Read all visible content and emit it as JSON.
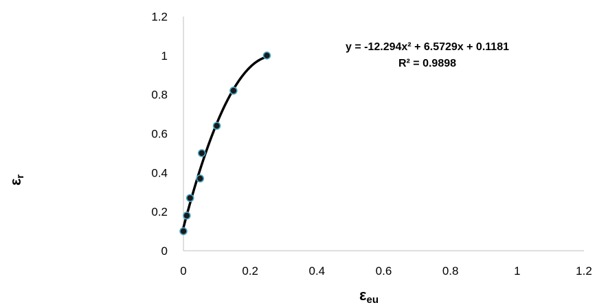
{
  "chart_data": {
    "type": "scatter",
    "xlabel": {
      "main": "ε",
      "sub": "eu"
    },
    "ylabel": {
      "main": "ε",
      "sub": "r"
    },
    "xlim": [
      0,
      1.2
    ],
    "ylim": [
      0,
      1.2
    ],
    "x_ticks": [
      "0",
      "0.2",
      "0.4",
      "0.6",
      "0.8",
      "1",
      "1.2"
    ],
    "y_ticks": [
      "0",
      "0.2",
      "0.4",
      "0.6",
      "0.8",
      "1",
      "1.2"
    ],
    "grid": false,
    "points": [
      {
        "x": 0.0,
        "y": 0.1
      },
      {
        "x": 0.01,
        "y": 0.18
      },
      {
        "x": 0.02,
        "y": 0.27
      },
      {
        "x": 0.05,
        "y": 0.37
      },
      {
        "x": 0.055,
        "y": 0.5
      },
      {
        "x": 0.1,
        "y": 0.64
      },
      {
        "x": 0.15,
        "y": 0.82
      },
      {
        "x": 0.25,
        "y": 1.0
      }
    ],
    "trendline": {
      "type": "polynomial",
      "coefficients": [
        -12.294,
        6.5729,
        0.1181
      ],
      "x_range": [
        0,
        0.25
      ],
      "equation": "y = -12.294x² + 6.5729x + 0.1181",
      "r_squared": "R² = 0.9898"
    },
    "colors": {
      "marker_fill": "#1a1a1a",
      "marker_edge": "#4aa8c8",
      "trendline": "#000000",
      "axis": "#bfbfbf"
    }
  }
}
